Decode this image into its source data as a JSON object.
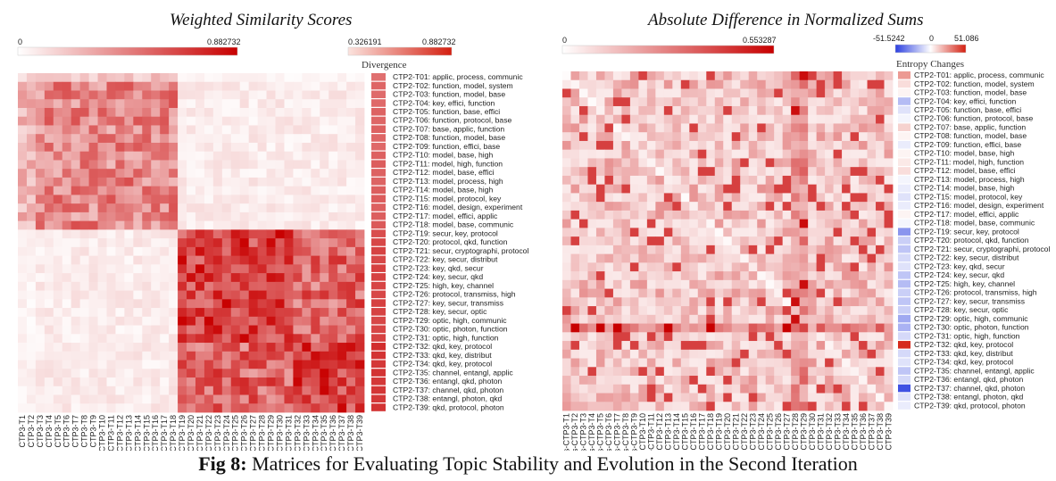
{
  "caption": {
    "label": "Fig 8:",
    "text": "Matrices for Evaluating Topic Stability and Evolution in the Second Iteration"
  },
  "topics": [
    "CTP2-T01: applic, process, communic",
    "CTP2-T02: function, model, system",
    "CTP2-T03: function, model, base",
    "CTP2-T04: key, effici, function",
    "CTP2-T05: function, base, effici",
    "CTP2-T06: function, protocol, base",
    "CTP2-T07: base, applic, function",
    "CTP2-T08: function, model, base",
    "CTP2-T09: function, effici, base",
    "CTP2-T10: model, base, high",
    "CTP2-T11: model, high, function",
    "CTP2-T12: model, base, effici",
    "CTP2-T13: model, process, high",
    "CTP2-T14: model, base, high",
    "CTP2-T15: model, protocol, key",
    "CTP2-T16: model, design, experiment",
    "CTP2-T17: model, effici, applic",
    "CTP2-T18: model, base, communic",
    "CTP2-T19: secur, key, protocol",
    "CTP2-T20: protocol, qkd, function",
    "CTP2-T21: secur, cryptographi, protocol",
    "CTP2-T22: key, secur, distribut",
    "CTP2-T23: key, qkd, secur",
    "CTP2-T24: key, secur, qkd",
    "CTP2-T25: high, key, channel",
    "CTP2-T26: protocol, transmiss, high",
    "CTP2-T27: key, secur, transmiss",
    "CTP2-T28: key, secur, optic",
    "CTP2-T29: optic, high, communic",
    "CTP2-T30: optic, photon, function",
    "CTP2-T31: optic, high, function",
    "CTP2-T32: qkd, key, protocol",
    "CTP2-T33: qkd, key, distribut",
    "CTP2-T34: qkd, key, protocol",
    "CTP2-T35: channel, entangl, applic",
    "CTP2-T36: entangl, qkd, photon",
    "CTP2-T37: channel, qkd, photon",
    "CTP2-T38: entangl, photon, qkd",
    "CTP2-T39: qkd, protocol, photon"
  ],
  "chart_data": [
    {
      "type": "heatmap",
      "title": "Weighted Similarity Scores",
      "colorbar": {
        "min": "0",
        "max": "0.882732"
      },
      "side_legend": {
        "title": "Divergence",
        "min": "0.326191",
        "max": "0.882732"
      },
      "x_tick_prefix": "CTP3-T",
      "x_tick_count": 39,
      "row_label_source": "topics",
      "side_values": [
        0.56,
        0.6,
        0.58,
        0.59,
        0.61,
        0.6,
        0.62,
        0.6,
        0.59,
        0.62,
        0.63,
        0.62,
        0.61,
        0.63,
        0.64,
        0.62,
        0.63,
        0.65,
        0.7,
        0.72,
        0.74,
        0.72,
        0.75,
        0.74,
        0.73,
        0.72,
        0.75,
        0.74,
        0.72,
        0.73,
        0.74,
        0.82,
        0.8,
        0.78,
        0.8,
        0.78,
        0.79,
        0.78,
        0.8
      ]
    },
    {
      "type": "heatmap",
      "title": "Absolute Difference in Normalized Sums",
      "colorbar": {
        "min": "0",
        "max": "0.553287"
      },
      "side_legend": {
        "title": "Entropy Changes",
        "min": "-51.5242",
        "mid": "0",
        "max": "51.086"
      },
      "x_tick_prefix": "Abs-CTP3-T",
      "x_tick_count": 39,
      "row_label_source": "topics",
      "side_values": [
        0.45,
        0.15,
        0.05,
        -0.35,
        -0.15,
        -0.05,
        0.2,
        0.05,
        -0.1,
        0.05,
        0.1,
        0.15,
        -0.05,
        -0.1,
        -0.15,
        -0.1,
        0.05,
        -0.05,
        -0.55,
        -0.25,
        -0.3,
        -0.2,
        -0.15,
        -0.3,
        -0.35,
        -0.25,
        -0.3,
        -0.25,
        -0.45,
        -0.4,
        -0.2,
        0.95,
        -0.2,
        -0.15,
        -0.3,
        -0.2,
        -0.9,
        -0.15,
        -0.1
      ]
    }
  ]
}
